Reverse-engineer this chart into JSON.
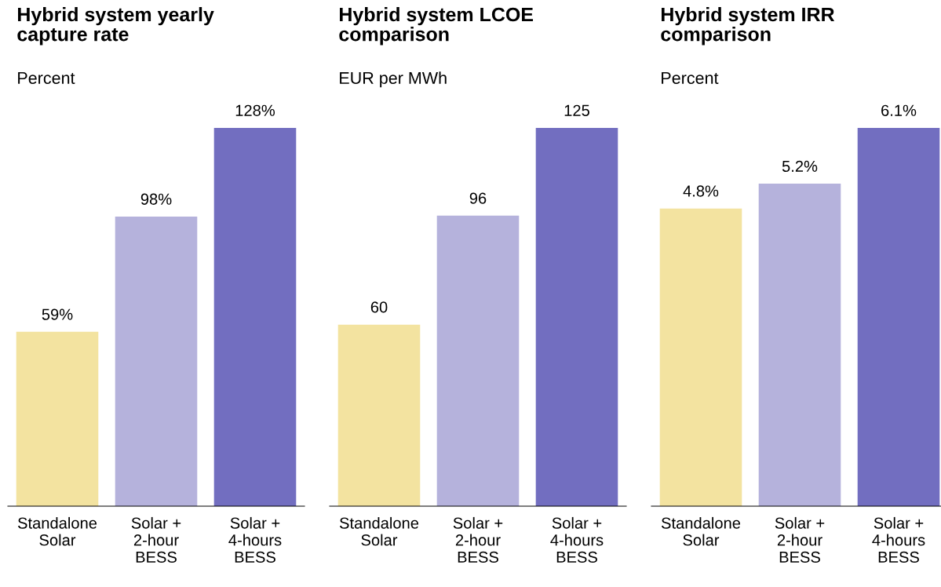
{
  "chart_data": [
    {
      "type": "bar",
      "title": "Hybrid system yearly capture rate",
      "subtitle": "Percent",
      "categories": [
        "Standalone\nSolar",
        "Solar +\n2-hour\nBESS",
        "Solar +\n4-hours\nBESS"
      ],
      "values": [
        59,
        98,
        128
      ],
      "colors": [
        "#f3e3a0",
        "#b5b2dc",
        "#726ec0"
      ],
      "value_labels": [
        "59%",
        "98%",
        "128%"
      ],
      "tick_labels": "x"
    },
    {
      "type": "bar",
      "title": "Hybrid system LCOE comparison",
      "subtitle": "EUR per MWh",
      "categories": [
        "Standalone\nSolar",
        "Solar +\n2-hour\nBESS",
        "Solar +\n4-hours\nBESS"
      ],
      "values": [
        60,
        96,
        125
      ],
      "colors": [
        "#f3e3a0",
        "#b5b2dc",
        "#726ec0"
      ],
      "data_labels": true,
      "tick_labels": "x"
    },
    {
      "type": "bar",
      "title": "Hybrid system IRR comparison",
      "subtitle": "Percent",
      "categories": [
        "Standalone\nSolar",
        "Solar +\n2-hour\nBESS",
        "Solar +\n4-hours\nBESS"
      ],
      "values": [
        4.8,
        5.2,
        6.1
      ],
      "colors": [
        "#f3e3a0",
        "#b5b2dc",
        "#726ec0"
      ],
      "value_labels": [
        "4.8%",
        "5.2%",
        "6.1%"
      ],
      "tick_labels": "x"
    }
  ]
}
